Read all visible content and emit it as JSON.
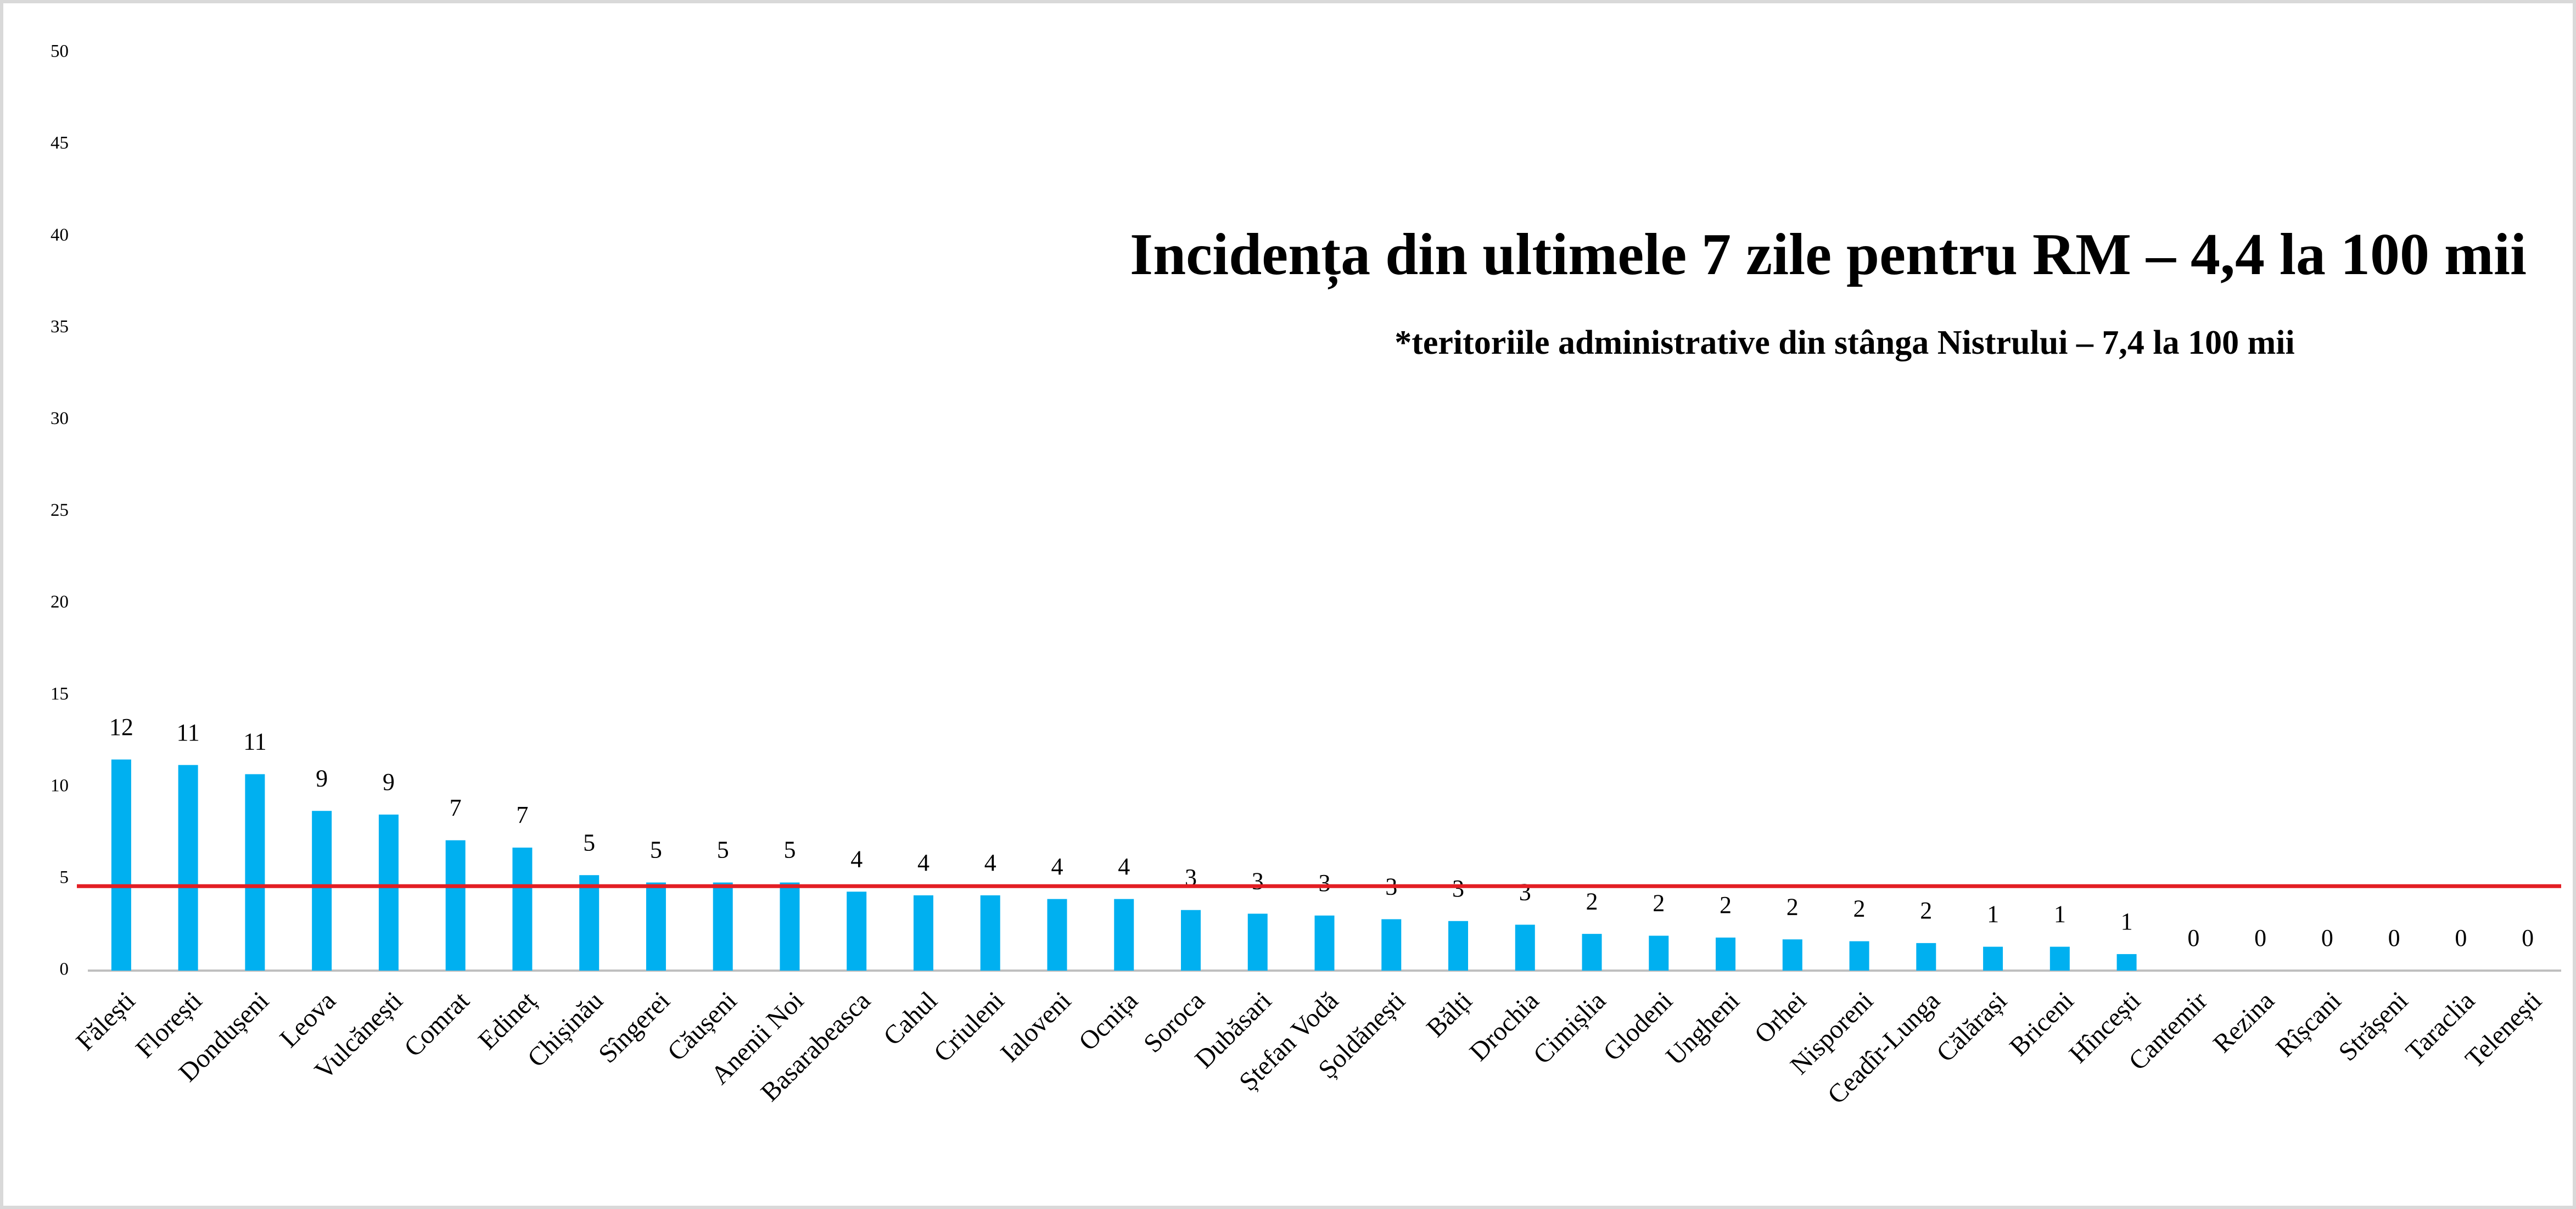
{
  "chart_data": {
    "type": "bar",
    "title": "Incidența din ultimele 7 zile pentru RM – 4,4 la 100 mii",
    "subtitle": "*teritoriile administrative din stânga Nistrului – 7,4 la 100 mii",
    "categories": [
      "Fălești",
      "Florești",
      "Dondușeni",
      "Leova",
      "Vulcănești",
      "Comrat",
      "Edineț",
      "Chișinău",
      "Sîngerei",
      "Căușeni",
      "Anenii Noi",
      "Basarabeasca",
      "Cahul",
      "Criuleni",
      "Ialoveni",
      "Ocnița",
      "Soroca",
      "Dubăsari",
      "Ștefan Vodă",
      "Șoldănești",
      "Bălți",
      "Drochia",
      "Cimișlia",
      "Glodeni",
      "Ungheni",
      "Orhei",
      "Nisporeni",
      "Ceadîr-Lunga",
      "Călărași",
      "Briceni",
      "Hîncești",
      "Cantemir",
      "Rezina",
      "Rîșcani",
      "Strășeni",
      "Taraclia",
      "Telenești"
    ],
    "values": [
      11.5,
      11.2,
      10.7,
      8.7,
      8.5,
      7.1,
      6.7,
      5.2,
      4.8,
      4.8,
      4.8,
      4.3,
      4.1,
      4.1,
      3.9,
      3.9,
      3.3,
      3.1,
      3.0,
      2.8,
      2.7,
      2.5,
      2.0,
      1.9,
      1.8,
      1.7,
      1.6,
      1.5,
      1.3,
      1.3,
      0.9,
      0,
      0,
      0,
      0,
      0,
      0
    ],
    "value_labels": [
      "12",
      "11",
      "11",
      "9",
      "9",
      "7",
      "7",
      "5",
      "5",
      "5",
      "5",
      "4",
      "4",
      "4",
      "4",
      "4",
      "3",
      "3",
      "3",
      "3",
      "3",
      "3",
      "2",
      "2",
      "2",
      "2",
      "2",
      "2",
      "1",
      "1",
      "1",
      "0",
      "0",
      "0",
      "0",
      "0",
      "0"
    ],
    "color": "#00b0f0",
    "reference_line": {
      "value": 4.6,
      "color": "#e31e24"
    },
    "ylim": [
      0,
      50
    ],
    "yticks": [
      0,
      5,
      10,
      15,
      20,
      25,
      30,
      35,
      40,
      45,
      50
    ],
    "grid": false
  }
}
